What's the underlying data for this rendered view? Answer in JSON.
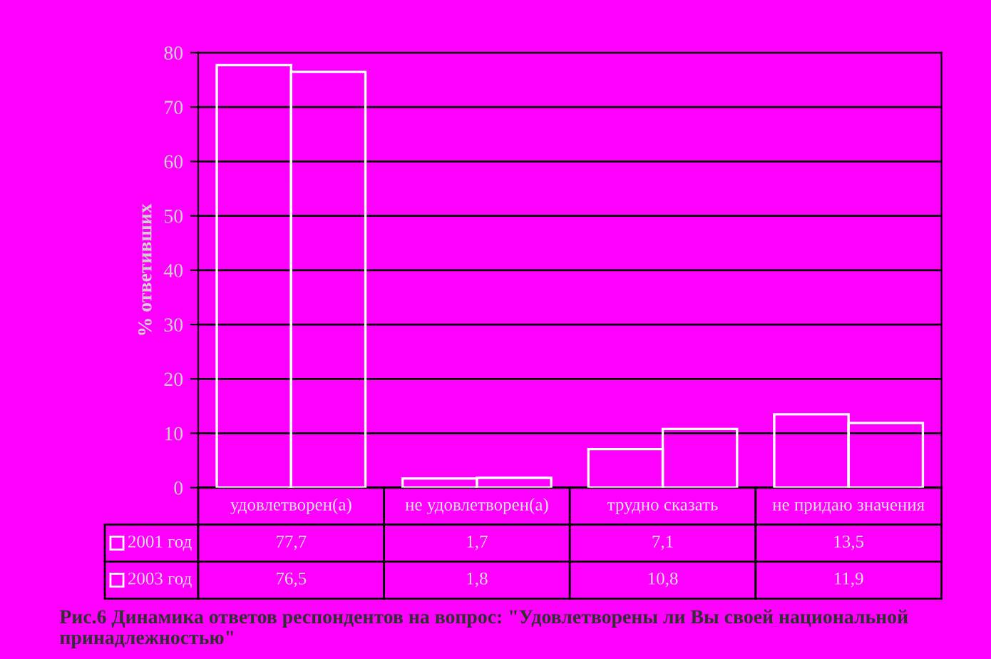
{
  "chart_data": {
    "type": "bar",
    "ylabel": "% ответивших",
    "categories": [
      "удовлетворен(а)",
      "не удовлетворен(а)",
      "трудно сказать",
      "не придаю значения"
    ],
    "series": [
      {
        "name": "2001 год",
        "color": "#ffffff",
        "values": [
          77.7,
          1.7,
          7.1,
          13.5
        ],
        "value_labels": [
          "77,7",
          "1,7",
          "7,1",
          "13,5"
        ]
      },
      {
        "name": "2003 год",
        "color": "#ffffff",
        "values": [
          76.5,
          1.8,
          10.8,
          11.9
        ],
        "value_labels": [
          "76,5",
          "1,8",
          "10,8",
          "11,9"
        ]
      }
    ],
    "ylim": [
      0,
      80
    ],
    "yticks": [
      0,
      10,
      20,
      30,
      40,
      50,
      60,
      70,
      80
    ],
    "grid": "y",
    "legend": "bottom left",
    "annotations": [
      "Рис.6 Динамика ответов респондентов на вопрос: \"Удовлетворены ли Вы своей национальной принадлежностью\""
    ]
  }
}
